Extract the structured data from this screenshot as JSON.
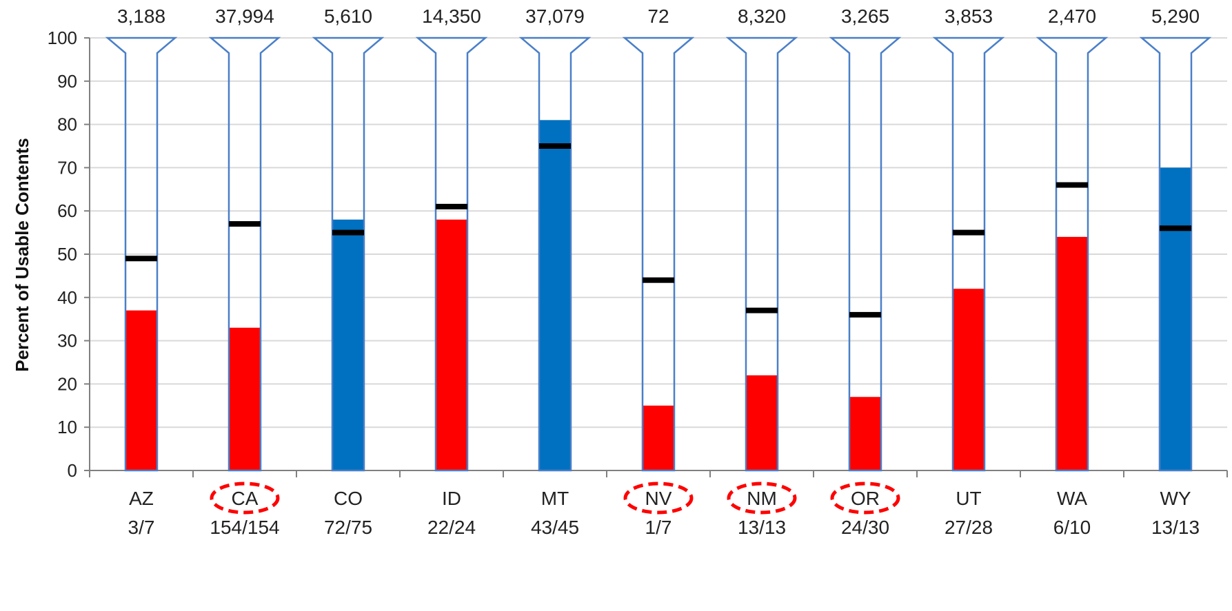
{
  "chart_data": {
    "type": "bar",
    "ylabel": "Percent of Usable Contents",
    "ylim": [
      0,
      100
    ],
    "yticks": [
      "0",
      "10",
      "20",
      "30",
      "40",
      "50",
      "60",
      "70",
      "80",
      "90",
      "100"
    ],
    "grid": true,
    "colors": {
      "below_marker": "#ff0000",
      "above_marker": "#0070c0",
      "marker": "#000000",
      "outline": "#4a7fc8",
      "circle": "#ff0000",
      "grid": "#d9d9d9"
    },
    "categories": [
      {
        "state": "AZ",
        "ratio": "3/7",
        "top_label": "3,188",
        "value": 37,
        "marker": 49,
        "fill": "red",
        "circled": false
      },
      {
        "state": "CA",
        "ratio": "154/154",
        "top_label": "37,994",
        "value": 33,
        "marker": 57,
        "fill": "red",
        "circled": true
      },
      {
        "state": "CO",
        "ratio": "72/75",
        "top_label": "5,610",
        "value": 58,
        "marker": 55,
        "fill": "blue",
        "circled": false
      },
      {
        "state": "ID",
        "ratio": "22/24",
        "top_label": "14,350",
        "value": 58,
        "marker": 61,
        "fill": "red",
        "circled": false
      },
      {
        "state": "MT",
        "ratio": "43/45",
        "top_label": "37,079",
        "value": 81,
        "marker": 75,
        "fill": "blue",
        "circled": false
      },
      {
        "state": "NV",
        "ratio": "1/7",
        "top_label": "72",
        "value": 15,
        "marker": 44,
        "fill": "red",
        "circled": true
      },
      {
        "state": "NM",
        "ratio": "13/13",
        "top_label": "8,320",
        "value": 22,
        "marker": 37,
        "fill": "red",
        "circled": true
      },
      {
        "state": "OR",
        "ratio": "24/30",
        "top_label": "3,265",
        "value": 17,
        "marker": 36,
        "fill": "red",
        "circled": true
      },
      {
        "state": "UT",
        "ratio": "27/28",
        "top_label": "3,853",
        "value": 42,
        "marker": 55,
        "fill": "red",
        "circled": false
      },
      {
        "state": "WA",
        "ratio": "6/10",
        "top_label": "2,470",
        "value": 54,
        "marker": 66,
        "fill": "red",
        "circled": false
      },
      {
        "state": "WY",
        "ratio": "13/13",
        "top_label": "5,290",
        "value": 70,
        "marker": 56,
        "fill": "blue",
        "circled": false
      }
    ]
  }
}
